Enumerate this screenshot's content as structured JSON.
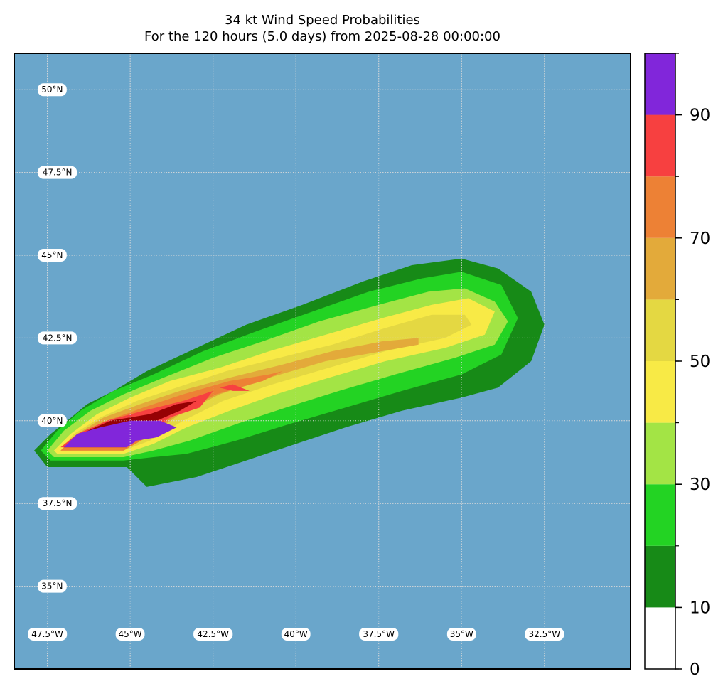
{
  "chart_data": {
    "type": "heatmap",
    "title": "34 kt Wind Speed Probabilities",
    "subtitle": "For the 120 hours (5.0 days) from 2025-08-28 00:00:00",
    "ocean_color": "#6aa6cb",
    "grid": true,
    "lon_range": [
      -48.5,
      -29.9
    ],
    "lat_range": [
      32.5,
      51.1
    ],
    "lat_labels": [
      {
        "value": 50,
        "text": "50°N"
      },
      {
        "value": 47.5,
        "text": "47.5°N"
      },
      {
        "value": 45,
        "text": "45°N"
      },
      {
        "value": 42.5,
        "text": "42.5°N"
      },
      {
        "value": 40,
        "text": "40°N"
      },
      {
        "value": 37.5,
        "text": "37.5°N"
      },
      {
        "value": 35,
        "text": "35°N"
      }
    ],
    "lon_labels": [
      {
        "value": -47.5,
        "text": "47.5°W"
      },
      {
        "value": -45,
        "text": "45°W"
      },
      {
        "value": -42.5,
        "text": "42.5°W"
      },
      {
        "value": -40,
        "text": "40°W"
      },
      {
        "value": -37.5,
        "text": "37.5°W"
      },
      {
        "value": -35,
        "text": "35°W"
      },
      {
        "value": -32.5,
        "text": "32.5°W"
      }
    ],
    "colorbar": {
      "levels": [
        0,
        10,
        20,
        30,
        40,
        50,
        60,
        70,
        80,
        90,
        100
      ],
      "colors": [
        "#ffffff",
        "#178a17",
        "#23d323",
        "#a3e445",
        "#f8ea46",
        "#e4d842",
        "#e3aa3a",
        "#ed8135",
        "#f74040",
        "#960104",
        "#8126da"
      ],
      "tick_values": [
        0,
        10,
        30,
        50,
        70,
        90
      ],
      "tick_labels": [
        "0",
        "10",
        "30",
        "50",
        "70",
        "90"
      ]
    },
    "contours": [
      {
        "level": 5,
        "color": "#178a17",
        "points": [
          [
            -45.1,
            38.6
          ],
          [
            -46.0,
            38.6
          ],
          [
            -47.5,
            38.6
          ],
          [
            -47.9,
            39.1
          ],
          [
            -47.4,
            39.6
          ],
          [
            -46.9,
            40.0
          ],
          [
            -46.3,
            40.5
          ],
          [
            -45.5,
            40.9
          ],
          [
            -44.5,
            41.5
          ],
          [
            -43.0,
            42.2
          ],
          [
            -41.5,
            42.9
          ],
          [
            -39.8,
            43.5
          ],
          [
            -38.0,
            44.2
          ],
          [
            -36.5,
            44.7
          ],
          [
            -35.0,
            44.9
          ],
          [
            -33.9,
            44.6
          ],
          [
            -32.9,
            43.9
          ],
          [
            -32.5,
            42.9
          ],
          [
            -32.9,
            41.8
          ],
          [
            -33.9,
            41.0
          ],
          [
            -35.0,
            40.7
          ],
          [
            -36.8,
            40.3
          ],
          [
            -38.5,
            39.8
          ],
          [
            -40.0,
            39.3
          ],
          [
            -41.5,
            38.8
          ],
          [
            -43.0,
            38.3
          ],
          [
            -44.5,
            38.0
          ],
          [
            -45.3,
            38.8
          ]
        ]
      },
      {
        "level": 15,
        "color": "#23d323",
        "points": [
          [
            -45.2,
            38.8
          ],
          [
            -47.4,
            38.8
          ],
          [
            -47.7,
            39.1
          ],
          [
            -47.2,
            39.7
          ],
          [
            -46.5,
            40.3
          ],
          [
            -45.5,
            40.9
          ],
          [
            -44.3,
            41.4
          ],
          [
            -42.8,
            42.1
          ],
          [
            -41.2,
            42.7
          ],
          [
            -39.5,
            43.3
          ],
          [
            -37.8,
            43.9
          ],
          [
            -36.2,
            44.3
          ],
          [
            -35.0,
            44.5
          ],
          [
            -33.8,
            44.1
          ],
          [
            -33.3,
            43.1
          ],
          [
            -33.8,
            42.0
          ],
          [
            -35.0,
            41.4
          ],
          [
            -36.8,
            40.9
          ],
          [
            -38.5,
            40.4
          ],
          [
            -40.2,
            39.9
          ],
          [
            -41.8,
            39.4
          ],
          [
            -43.3,
            39.0
          ],
          [
            -44.3,
            38.9
          ]
        ]
      },
      {
        "level": 25,
        "color": "#a3e445",
        "points": [
          [
            -45.2,
            38.9
          ],
          [
            -47.3,
            38.9
          ],
          [
            -47.5,
            39.1
          ],
          [
            -47.0,
            39.7
          ],
          [
            -46.2,
            40.3
          ],
          [
            -45.2,
            40.8
          ],
          [
            -44.0,
            41.3
          ],
          [
            -42.5,
            41.9
          ],
          [
            -41.0,
            42.4
          ],
          [
            -39.3,
            43.0
          ],
          [
            -37.5,
            43.5
          ],
          [
            -36.0,
            43.9
          ],
          [
            -34.9,
            44.0
          ],
          [
            -34.0,
            43.6
          ],
          [
            -33.6,
            43.0
          ],
          [
            -34.0,
            42.3
          ],
          [
            -35.2,
            41.9
          ],
          [
            -37.0,
            41.4
          ],
          [
            -38.7,
            40.9
          ],
          [
            -40.3,
            40.4
          ],
          [
            -41.8,
            39.9
          ],
          [
            -43.2,
            39.4
          ],
          [
            -44.3,
            39.1
          ]
        ]
      },
      {
        "level": 35,
        "color": "#f8ea46",
        "points": [
          [
            -45.2,
            39.0
          ],
          [
            -47.2,
            39.0
          ],
          [
            -47.3,
            39.1
          ],
          [
            -46.8,
            39.6
          ],
          [
            -46.0,
            40.2
          ],
          [
            -45.0,
            40.7
          ],
          [
            -43.8,
            41.2
          ],
          [
            -42.3,
            41.6
          ],
          [
            -40.8,
            42.1
          ],
          [
            -39.1,
            42.6
          ],
          [
            -37.4,
            43.1
          ],
          [
            -35.9,
            43.5
          ],
          [
            -34.8,
            43.7
          ],
          [
            -34.0,
            43.3
          ],
          [
            -34.3,
            42.6
          ],
          [
            -35.5,
            42.2
          ],
          [
            -37.3,
            41.8
          ],
          [
            -39.0,
            41.3
          ],
          [
            -40.6,
            40.8
          ],
          [
            -42.0,
            40.3
          ],
          [
            -43.3,
            39.8
          ],
          [
            -44.3,
            39.3
          ]
        ]
      },
      {
        "level": 45,
        "color": "#e4d842",
        "points": [
          [
            -45.2,
            39.1
          ],
          [
            -47.1,
            39.1
          ],
          [
            -46.7,
            39.6
          ],
          [
            -45.9,
            40.1
          ],
          [
            -44.8,
            40.6
          ],
          [
            -43.6,
            41.0
          ],
          [
            -42.1,
            41.5
          ],
          [
            -40.5,
            41.9
          ],
          [
            -38.9,
            42.3
          ],
          [
            -37.3,
            42.8
          ],
          [
            -35.9,
            43.2
          ],
          [
            -34.9,
            43.2
          ],
          [
            -34.7,
            42.9
          ],
          [
            -35.5,
            42.5
          ],
          [
            -37.3,
            42.1
          ],
          [
            -39.0,
            41.6
          ],
          [
            -40.7,
            41.1
          ],
          [
            -42.2,
            40.6
          ],
          [
            -43.4,
            40.0
          ],
          [
            -44.4,
            39.4
          ]
        ]
      },
      {
        "level": 55,
        "color": "#e3aa3a",
        "points": [
          [
            -45.2,
            39.1
          ],
          [
            -47.1,
            39.1
          ],
          [
            -46.6,
            39.6
          ],
          [
            -45.8,
            40.1
          ],
          [
            -44.7,
            40.5
          ],
          [
            -43.5,
            40.9
          ],
          [
            -42.0,
            41.3
          ],
          [
            -40.4,
            41.7
          ],
          [
            -38.9,
            42.1
          ],
          [
            -37.4,
            42.4
          ],
          [
            -36.3,
            42.5
          ],
          [
            -36.3,
            42.3
          ],
          [
            -37.4,
            42.1
          ],
          [
            -39.1,
            41.8
          ],
          [
            -40.8,
            41.3
          ],
          [
            -42.3,
            40.8
          ],
          [
            -43.5,
            40.2
          ],
          [
            -44.5,
            39.5
          ]
        ]
      },
      {
        "level": 65,
        "color": "#ed8135",
        "points": [
          [
            -45.2,
            39.1
          ],
          [
            -47.1,
            39.1
          ],
          [
            -46.6,
            39.6
          ],
          [
            -45.7,
            40.0
          ],
          [
            -44.6,
            40.4
          ],
          [
            -43.4,
            40.8
          ],
          [
            -42.0,
            41.2
          ],
          [
            -40.8,
            41.4
          ],
          [
            -40.4,
            41.5
          ],
          [
            -41.0,
            41.2
          ],
          [
            -42.4,
            40.8
          ],
          [
            -43.6,
            40.2
          ],
          [
            -44.5,
            39.5
          ]
        ]
      },
      {
        "level": 75,
        "color": "#f74040",
        "points": [
          [
            -45.2,
            39.2
          ],
          [
            -47.1,
            39.2
          ],
          [
            -46.6,
            39.6
          ],
          [
            -45.7,
            40.0
          ],
          [
            -44.6,
            40.3
          ],
          [
            -43.4,
            40.6
          ],
          [
            -42.5,
            40.9
          ],
          [
            -42.9,
            40.4
          ],
          [
            -43.8,
            40.1
          ],
          [
            -44.5,
            39.6
          ]
        ]
      },
      {
        "level": 75,
        "color": "#f74040",
        "points": [
          [
            -42.3,
            41.0
          ],
          [
            -41.9,
            41.1
          ],
          [
            -41.4,
            40.9
          ],
          [
            -41.9,
            40.9
          ]
        ]
      },
      {
        "level": 85,
        "color": "#960104",
        "points": [
          [
            -45.1,
            39.2
          ],
          [
            -47.0,
            39.2
          ],
          [
            -46.5,
            39.6
          ],
          [
            -45.6,
            40.0
          ],
          [
            -44.4,
            40.2
          ],
          [
            -43.6,
            40.5
          ],
          [
            -43.0,
            40.6
          ],
          [
            -43.5,
            40.3
          ],
          [
            -44.2,
            40.0
          ],
          [
            -44.6,
            39.7
          ],
          [
            -45.0,
            39.5
          ]
        ]
      },
      {
        "level": 95,
        "color": "#8126da",
        "points": [
          [
            -45.1,
            39.2
          ],
          [
            -47.0,
            39.2
          ],
          [
            -46.6,
            39.6
          ],
          [
            -45.9,
            39.8
          ],
          [
            -45.0,
            40.0
          ],
          [
            -44.1,
            40.0
          ],
          [
            -43.6,
            39.8
          ],
          [
            -44.2,
            39.5
          ],
          [
            -44.8,
            39.4
          ]
        ]
      }
    ]
  }
}
